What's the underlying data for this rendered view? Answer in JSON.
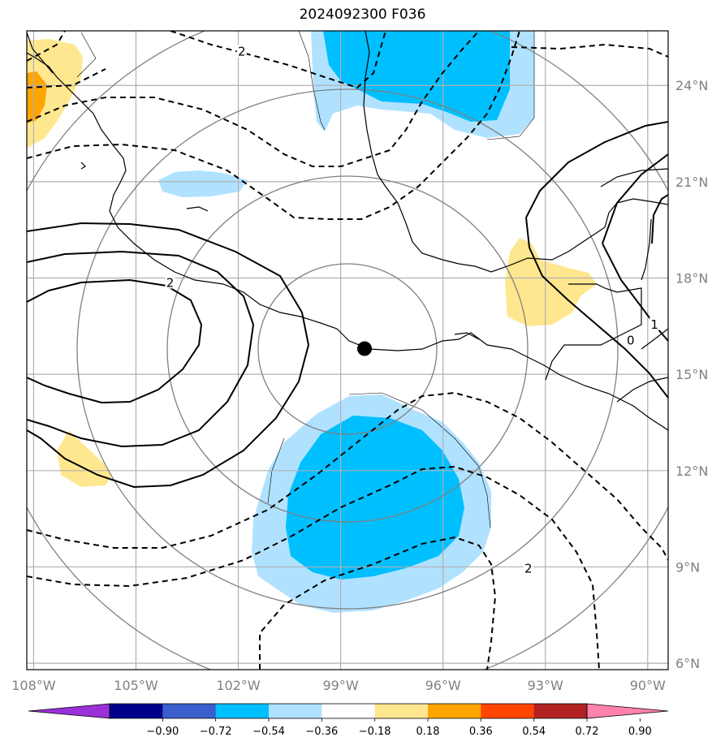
{
  "title": "2024092300 F036",
  "map": {
    "lon_range": [
      -108.2,
      -89.4
    ],
    "lat_range": [
      5.8,
      25.7
    ],
    "lon_ticks": [
      {
        "value": -108,
        "label": "108°W"
      },
      {
        "value": -105,
        "label": "105°W"
      },
      {
        "value": -102,
        "label": "102°W"
      },
      {
        "value": -99,
        "label": "99°W"
      },
      {
        "value": -96,
        "label": "96°W"
      },
      {
        "value": -93,
        "label": "93°W"
      },
      {
        "value": -90,
        "label": "90°W"
      }
    ],
    "lat_ticks": [
      {
        "value": 6,
        "label": "6°N"
      },
      {
        "value": 9,
        "label": "9°N"
      },
      {
        "value": 12,
        "label": "12°N"
      },
      {
        "value": 15,
        "label": "15°N"
      },
      {
        "value": 18,
        "label": "18°N"
      },
      {
        "value": 21,
        "label": "21°N"
      },
      {
        "value": 24,
        "label": "24°N"
      }
    ],
    "storm_center": {
      "lon": -98.3,
      "lat": 15.8
    },
    "contour_labels": [
      {
        "text": "2",
        "lon": -101.9,
        "lat": 25.0
      },
      {
        "text": "2",
        "lon": -104.0,
        "lat": 17.8
      },
      {
        "text": "2",
        "lon": -93.5,
        "lat": 8.9
      },
      {
        "text": "1",
        "lon": -89.8,
        "lat": 16.5
      },
      {
        "text": "0",
        "lon": -90.5,
        "lat": 16.0
      }
    ]
  },
  "colorbar": {
    "colors": [
      "#9b30d8",
      "#00008b",
      "#3a5fcd",
      "#00bfff",
      "#b0e2ff",
      "#ffffff",
      "#ffe78f",
      "#ffa500",
      "#ff4500",
      "#b22222",
      "#ff82ab"
    ],
    "tick_labels": [
      "−0.90",
      "−0.72",
      "−0.54",
      "−0.36",
      "−0.18",
      "0.18",
      "0.36",
      "0.54",
      "0.72",
      "0.90"
    ]
  },
  "legend_colors": {
    "light_blue": "#b0e2ff",
    "deep_sky_blue": "#00bfff",
    "light_yellow": "#ffe78f",
    "orange": "#ffa500"
  }
}
